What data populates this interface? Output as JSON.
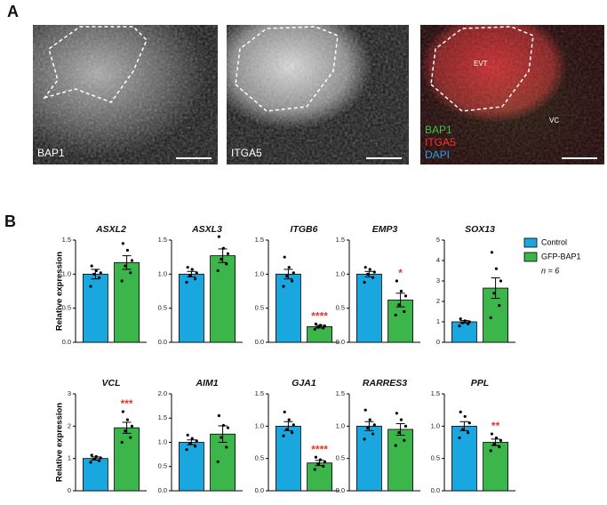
{
  "panel_a": {
    "label": "A",
    "images": [
      {
        "label": "BAP1"
      },
      {
        "label": "ITGA5"
      },
      {
        "labels": [
          "BAP1",
          "ITGA5",
          "DAPI"
        ],
        "annotations": [
          "EVT",
          "VC"
        ]
      }
    ]
  },
  "panel_b_label": "B",
  "legend_note": "n = 6",
  "chart_data": [
    {
      "type": "bar",
      "title": "ASXL2",
      "ylabel": "Relative expression",
      "ylim": [
        0,
        1.5
      ],
      "yticks": [
        {
          "value": 0,
          "label": "0.0"
        },
        {
          "value": 0.5,
          "label": "0.5"
        },
        {
          "value": 1,
          "label": "1.0"
        },
        {
          "value": 1.5,
          "label": "1.5"
        }
      ],
      "series": [
        {
          "name": "Control",
          "color": "#1aa7e0",
          "values": [
            1.0
          ],
          "errors": [
            0.07
          ],
          "points": [
            [
              0.82,
              0.95,
              1.0,
              1.02,
              1.05,
              1.12
            ]
          ]
        },
        {
          "name": "GFP-BAP1",
          "color": "#3cb54a",
          "values": [
            1.17
          ],
          "errors": [
            0.1
          ],
          "points": [
            [
              0.9,
              1.02,
              1.12,
              1.2,
              1.35,
              1.45
            ]
          ]
        }
      ]
    },
    {
      "type": "bar",
      "title": "ASXL3",
      "ylim": [
        0,
        1.5
      ],
      "yticks": [
        {
          "value": 0,
          "label": "0.0"
        },
        {
          "value": 0.5,
          "label": "0.5"
        },
        {
          "value": 1,
          "label": "1.0"
        },
        {
          "value": 1.5,
          "label": "1.5"
        }
      ],
      "series": [
        {
          "name": "Control",
          "color": "#1aa7e0",
          "values": [
            1.0
          ],
          "errors": [
            0.04
          ],
          "points": [
            [
              0.88,
              0.93,
              0.98,
              1.02,
              1.07,
              1.1
            ]
          ]
        },
        {
          "name": "GFP-BAP1",
          "color": "#3cb54a",
          "values": [
            1.27
          ],
          "errors": [
            0.1
          ],
          "points": [
            [
              1.05,
              1.15,
              1.22,
              1.3,
              1.38,
              1.55
            ]
          ]
        }
      ]
    },
    {
      "type": "bar",
      "title": "ITGB6",
      "ylim": [
        0,
        1.5
      ],
      "significance": "****",
      "yticks": [
        {
          "value": 0,
          "label": "0.0"
        },
        {
          "value": 0.5,
          "label": "0.5"
        },
        {
          "value": 1,
          "label": "1.0"
        },
        {
          "value": 1.5,
          "label": "1.5"
        }
      ],
      "series": [
        {
          "name": "Control",
          "color": "#1aa7e0",
          "values": [
            1.0
          ],
          "errors": [
            0.07
          ],
          "points": [
            [
              0.82,
              0.9,
              0.97,
              1.02,
              1.1,
              1.25
            ]
          ]
        },
        {
          "name": "GFP-BAP1",
          "color": "#3cb54a",
          "values": [
            0.23
          ],
          "errors": [
            0.02
          ],
          "points": [
            [
              0.19,
              0.21,
              0.22,
              0.24,
              0.25,
              0.27
            ]
          ]
        }
      ]
    },
    {
      "type": "bar",
      "title": "EMP3",
      "ylim": [
        0,
        1.5
      ],
      "significance": "*",
      "yticks": [
        {
          "value": 0,
          "label": "0.0"
        },
        {
          "value": 0.5,
          "label": "0.5"
        },
        {
          "value": 1,
          "label": "1.0"
        },
        {
          "value": 1.5,
          "label": "1.5"
        }
      ],
      "series": [
        {
          "name": "Control",
          "color": "#1aa7e0",
          "values": [
            1.0
          ],
          "errors": [
            0.04
          ],
          "points": [
            [
              0.88,
              0.95,
              1.0,
              1.03,
              1.07,
              1.1
            ]
          ]
        },
        {
          "name": "GFP-BAP1",
          "color": "#3cb54a",
          "values": [
            0.62
          ],
          "errors": [
            0.1
          ],
          "points": [
            [
              0.4,
              0.45,
              0.55,
              0.68,
              0.75,
              0.9
            ]
          ]
        }
      ]
    },
    {
      "type": "bar",
      "title": "SOX13",
      "ylim": [
        0,
        5
      ],
      "yticks": [
        0,
        1,
        2,
        3,
        4,
        5
      ],
      "series": [
        {
          "name": "Control",
          "color": "#1aa7e0",
          "values": [
            1.0
          ],
          "errors": [
            0.06
          ],
          "points": [
            [
              0.8,
              0.9,
              0.95,
              1.0,
              1.05,
              1.15
            ]
          ]
        },
        {
          "name": "GFP-BAP1",
          "color": "#3cb54a",
          "values": [
            2.65
          ],
          "errors": [
            0.5
          ],
          "points": [
            [
              1.2,
              1.8,
              2.4,
              3.0,
              3.6,
              4.4
            ]
          ]
        }
      ]
    },
    {
      "type": "bar",
      "title": "VCL",
      "ylabel": "Relative expression",
      "ylim": [
        0,
        3
      ],
      "yticks": [
        0,
        1,
        2,
        3
      ],
      "significance": "***",
      "series": [
        {
          "name": "Control",
          "color": "#1aa7e0",
          "values": [
            1.0
          ],
          "errors": [
            0.05
          ],
          "points": [
            [
              0.88,
              0.93,
              0.98,
              1.02,
              1.06,
              1.1
            ]
          ]
        },
        {
          "name": "GFP-BAP1",
          "color": "#3cb54a",
          "values": [
            1.95
          ],
          "errors": [
            0.17
          ],
          "points": [
            [
              1.5,
              1.65,
              1.85,
              2.0,
              2.2,
              2.45
            ]
          ]
        }
      ]
    },
    {
      "type": "bar",
      "title": "AIM1",
      "ylim": [
        0,
        2
      ],
      "yticks": [
        {
          "value": 0,
          "label": "0.0"
        },
        {
          "value": 0.5,
          "label": "0.5"
        },
        {
          "value": 1,
          "label": "1.0"
        },
        {
          "value": 1.5,
          "label": "1.5"
        },
        {
          "value": 2,
          "label": "2.0"
        }
      ],
      "series": [
        {
          "name": "Control",
          "color": "#1aa7e0",
          "values": [
            1.0
          ],
          "errors": [
            0.05
          ],
          "points": [
            [
              0.85,
              0.92,
              0.98,
              1.03,
              1.08,
              1.15
            ]
          ]
        },
        {
          "name": "GFP-BAP1",
          "color": "#3cb54a",
          "values": [
            1.17
          ],
          "errors": [
            0.17
          ],
          "points": [
            [
              0.6,
              0.9,
              1.1,
              1.3,
              1.35,
              1.55
            ]
          ]
        }
      ]
    },
    {
      "type": "bar",
      "title": "GJA1",
      "ylim": [
        0,
        1.5
      ],
      "significance": "****",
      "yticks": [
        {
          "value": 0,
          "label": "0.0"
        },
        {
          "value": 0.5,
          "label": "0.5"
        },
        {
          "value": 1,
          "label": "1.0"
        },
        {
          "value": 1.5,
          "label": "1.5"
        }
      ],
      "series": [
        {
          "name": "Control",
          "color": "#1aa7e0",
          "values": [
            1.0
          ],
          "errors": [
            0.07
          ],
          "points": [
            [
              0.85,
              0.9,
              0.95,
              1.02,
              1.1,
              1.22
            ]
          ]
        },
        {
          "name": "GFP-BAP1",
          "color": "#3cb54a",
          "values": [
            0.43
          ],
          "errors": [
            0.04
          ],
          "points": [
            [
              0.33,
              0.38,
              0.42,
              0.45,
              0.48,
              0.52
            ]
          ]
        }
      ]
    },
    {
      "type": "bar",
      "title": "RARRES3",
      "ylim": [
        0,
        1.5
      ],
      "yticks": [
        {
          "value": 0,
          "label": "0.0"
        },
        {
          "value": 0.5,
          "label": "0.5"
        },
        {
          "value": 1,
          "label": "1.0"
        },
        {
          "value": 1.5,
          "label": "1.5"
        }
      ],
      "series": [
        {
          "name": "Control",
          "color": "#1aa7e0",
          "values": [
            1.0
          ],
          "errors": [
            0.07
          ],
          "points": [
            [
              0.8,
              0.88,
              0.97,
              1.02,
              1.1,
              1.25
            ]
          ]
        },
        {
          "name": "GFP-BAP1",
          "color": "#3cb54a",
          "values": [
            0.95
          ],
          "errors": [
            0.09
          ],
          "points": [
            [
              0.7,
              0.78,
              0.9,
              1.0,
              1.1,
              1.2
            ]
          ]
        }
      ]
    },
    {
      "type": "bar",
      "title": "PPL",
      "ylim": [
        0,
        1.5
      ],
      "significance": "**",
      "yticks": [
        {
          "value": 0,
          "label": "0.0"
        },
        {
          "value": 0.5,
          "label": "0.5"
        },
        {
          "value": 1,
          "label": "1.0"
        },
        {
          "value": 1.5,
          "label": "1.5"
        }
      ],
      "series": [
        {
          "name": "Control",
          "color": "#1aa7e0",
          "values": [
            1.0
          ],
          "errors": [
            0.07
          ],
          "points": [
            [
              0.82,
              0.9,
              0.95,
              1.05,
              1.15,
              1.22
            ]
          ]
        },
        {
          "name": "GFP-BAP1",
          "color": "#3cb54a",
          "values": [
            0.75
          ],
          "errors": [
            0.05
          ],
          "points": [
            [
              0.62,
              0.68,
              0.72,
              0.78,
              0.82,
              0.88
            ]
          ]
        }
      ]
    }
  ]
}
